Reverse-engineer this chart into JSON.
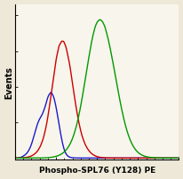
{
  "xlabel": "Phospho-SPL76 (Y128) PE",
  "ylabel": "Events",
  "background_color": "#ede8d8",
  "plot_bg_color": "#f8f5ec",
  "xlabel_fontsize": 6.5,
  "ylabel_fontsize": 7.0,
  "blue_color": "#1a1acc",
  "red_color": "#cc0000",
  "green_color": "#009900",
  "linewidth": 1.0
}
